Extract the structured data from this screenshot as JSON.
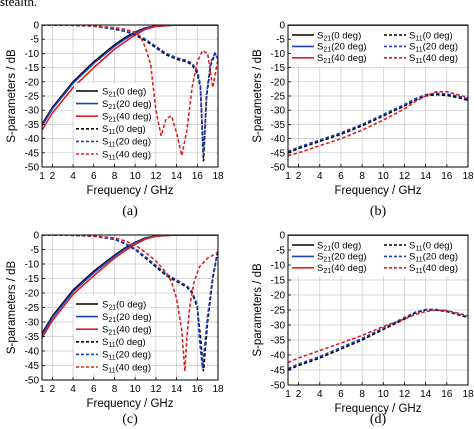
{
  "page_top_text": "stealth.",
  "chart_data": [
    {
      "panel": "(a)",
      "type": "line",
      "xlabel": "Frequency / GHz",
      "ylabel": "S-parameters / dB",
      "xlim": [
        1,
        18
      ],
      "ylim": [
        -50,
        0
      ],
      "xticks": [
        1,
        2,
        4,
        6,
        8,
        10,
        12,
        14,
        16,
        18
      ],
      "yticks": [
        0,
        -5,
        -10,
        -15,
        -20,
        -25,
        -30,
        -35,
        -40,
        -45,
        -50
      ],
      "grid": true,
      "legend_position": "lower-left",
      "series": [
        {
          "name": "S21(0 deg)",
          "sub": "21",
          "ang": "0",
          "color": "#000000",
          "dash": "solid",
          "x": [
            1,
            2,
            4,
            6,
            8,
            9,
            10,
            11,
            12,
            14,
            16,
            18
          ],
          "y": [
            -35,
            -29,
            -20,
            -13,
            -7,
            -4.5,
            -2.5,
            -1,
            -0.3,
            0,
            0,
            0
          ]
        },
        {
          "name": "S21(20 deg)",
          "sub": "21",
          "ang": "20",
          "color": "#1f3fbf",
          "dash": "solid",
          "x": [
            1,
            2,
            4,
            6,
            8,
            9,
            10,
            11,
            12,
            14,
            16,
            18
          ],
          "y": [
            -35.5,
            -29.5,
            -20.5,
            -13.5,
            -7.5,
            -5,
            -2.8,
            -1.1,
            -0.3,
            0,
            0,
            0
          ]
        },
        {
          "name": "S21(40 deg)",
          "sub": "21",
          "ang": "40",
          "color": "#e02020",
          "dash": "solid",
          "x": [
            1,
            2,
            4,
            6,
            8,
            9,
            10,
            11,
            12,
            14,
            16,
            18
          ],
          "y": [
            -37,
            -31,
            -22,
            -15,
            -8.5,
            -6,
            -3.5,
            -1.5,
            -0.5,
            0,
            0,
            0
          ]
        },
        {
          "name": "S11(0 deg)",
          "sub": "11",
          "ang": "0",
          "color": "#000000",
          "dash": "dash",
          "x": [
            1,
            2,
            4,
            6,
            8,
            9,
            10,
            11,
            12,
            13,
            14,
            15,
            15.5,
            16,
            16.3,
            16.6,
            16.9,
            17.3,
            17.7,
            18
          ],
          "y": [
            0,
            0,
            -0.1,
            -0.4,
            -1.5,
            -2.2,
            -3.5,
            -5.5,
            -8,
            -10.5,
            -12,
            -13,
            -14,
            -17,
            -22,
            -48,
            -25,
            -14,
            -10,
            -12
          ]
        },
        {
          "name": "S11(20 deg)",
          "sub": "11",
          "ang": "20",
          "color": "#1f3fbf",
          "dash": "dash",
          "x": [
            1,
            2,
            4,
            6,
            8,
            9,
            10,
            11,
            12,
            13,
            14,
            15,
            15.5,
            16,
            16.3,
            16.6,
            16.9,
            17.3,
            17.7,
            18
          ],
          "y": [
            0,
            0,
            -0.1,
            -0.4,
            -1.4,
            -2.1,
            -3.2,
            -5,
            -7.5,
            -10,
            -11.5,
            -12.5,
            -13.5,
            -16,
            -21,
            -46,
            -24,
            -13,
            -10,
            -12
          ]
        },
        {
          "name": "S11(40 deg)",
          "sub": "11",
          "ang": "40",
          "color": "#e02020",
          "dash": "dash",
          "x": [
            1,
            2,
            4,
            6,
            8,
            9,
            10,
            10.5,
            11,
            11.5,
            12,
            12.5,
            13,
            13.5,
            14,
            14.5,
            15,
            15.5,
            16,
            16.5,
            17,
            17.5,
            18
          ],
          "y": [
            0,
            0,
            -0.1,
            -0.3,
            -0.9,
            -1.5,
            -2.5,
            -4,
            -8,
            -14,
            -30,
            -39,
            -33,
            -32,
            -38,
            -46,
            -37,
            -22,
            -13,
            -9,
            -10,
            -22,
            -12
          ]
        }
      ]
    },
    {
      "panel": "(b)",
      "type": "line",
      "xlabel": "Frequency / GHz",
      "ylabel": "S-parameters / dB",
      "xlim": [
        1,
        18
      ],
      "ylim": [
        -50,
        0
      ],
      "xticks": [
        1,
        2,
        4,
        6,
        8,
        10,
        12,
        14,
        16,
        18
      ],
      "yticks": [
        0,
        -5,
        -10,
        -15,
        -20,
        -25,
        -30,
        -35,
        -40,
        -45,
        -50
      ],
      "grid": true,
      "legend_position": "top",
      "series": [
        {
          "name": "S21(0 deg)",
          "sub": "21",
          "ang": "0",
          "color": "#000000",
          "dash": "solid",
          "x": [
            1,
            18
          ],
          "y": [
            0,
            0
          ]
        },
        {
          "name": "S21(20 deg)",
          "sub": "21",
          "ang": "20",
          "color": "#1f3fbf",
          "dash": "solid",
          "x": [
            1,
            18
          ],
          "y": [
            0,
            0
          ]
        },
        {
          "name": "S21(40 deg)",
          "sub": "21",
          "ang": "40",
          "color": "#e02020",
          "dash": "solid",
          "x": [
            1,
            18
          ],
          "y": [
            0,
            0
          ]
        },
        {
          "name": "S11(0 deg)",
          "sub": "11",
          "ang": "0",
          "color": "#000000",
          "dash": "dash",
          "x": [
            1,
            2,
            4,
            6,
            8,
            10,
            12,
            13,
            14,
            15,
            16,
            17,
            18
          ],
          "y": [
            -45,
            -43.5,
            -41,
            -38.5,
            -35.5,
            -32,
            -28.5,
            -26.5,
            -25,
            -24.5,
            -24.8,
            -25.5,
            -26.5
          ]
        },
        {
          "name": "S11(20 deg)",
          "sub": "11",
          "ang": "20",
          "color": "#1f3fbf",
          "dash": "dash",
          "x": [
            1,
            2,
            4,
            6,
            8,
            10,
            12,
            13,
            14,
            15,
            16,
            17,
            18
          ],
          "y": [
            -44.5,
            -43,
            -40.5,
            -38,
            -35,
            -31.5,
            -28,
            -26,
            -24.5,
            -24,
            -24.3,
            -25,
            -26
          ]
        },
        {
          "name": "S11(40 deg)",
          "sub": "11",
          "ang": "40",
          "color": "#e02020",
          "dash": "dash",
          "x": [
            1,
            2,
            4,
            6,
            8,
            10,
            12,
            13,
            14,
            15,
            16,
            17,
            18
          ],
          "y": [
            -46,
            -45,
            -42.5,
            -40,
            -37,
            -33.5,
            -29.5,
            -27,
            -25,
            -23.5,
            -23.5,
            -24.5,
            -25.5
          ]
        }
      ]
    },
    {
      "panel": "(c)",
      "type": "line",
      "xlabel": "Frequency / GHz",
      "ylabel": "S-parameters / dB",
      "xlim": [
        1,
        18
      ],
      "ylim": [
        -50,
        0
      ],
      "xticks": [
        1,
        2,
        4,
        6,
        8,
        10,
        12,
        14,
        16,
        18
      ],
      "yticks": [
        0,
        -5,
        -10,
        -15,
        -20,
        -25,
        -30,
        -35,
        -40,
        -45,
        -50
      ],
      "grid": true,
      "legend_position": "lower-left",
      "series": [
        {
          "name": "S21(0 deg)",
          "sub": "21",
          "ang": "0",
          "color": "#000000",
          "dash": "solid",
          "x": [
            1,
            2,
            4,
            6,
            8,
            9,
            10,
            11,
            12,
            14,
            16,
            18
          ],
          "y": [
            -34,
            -28,
            -19,
            -12.5,
            -7,
            -4.5,
            -2.5,
            -1,
            -0.3,
            0,
            0,
            0
          ]
        },
        {
          "name": "S21(20 deg)",
          "sub": "21",
          "ang": "20",
          "color": "#1f3fbf",
          "dash": "solid",
          "x": [
            1,
            2,
            4,
            6,
            8,
            9,
            10,
            11,
            12,
            14,
            16,
            18
          ],
          "y": [
            -34.5,
            -28.5,
            -19.5,
            -13,
            -7.3,
            -4.8,
            -2.7,
            -1.1,
            -0.3,
            0,
            0,
            0
          ]
        },
        {
          "name": "S21(40 deg)",
          "sub": "21",
          "ang": "40",
          "color": "#e02020",
          "dash": "solid",
          "x": [
            1,
            2,
            4,
            6,
            8,
            9,
            10,
            11,
            12,
            14,
            16,
            18
          ],
          "y": [
            -35.5,
            -29.5,
            -20.5,
            -14,
            -8,
            -5.5,
            -3.2,
            -1.4,
            -0.4,
            0,
            0,
            0
          ]
        },
        {
          "name": "S11(0 deg)",
          "sub": "11",
          "ang": "0",
          "color": "#000000",
          "dash": "dash",
          "x": [
            1,
            2,
            4,
            6,
            8,
            9,
            10,
            11,
            12,
            13,
            14,
            15,
            15.5,
            16,
            16.3,
            16.6,
            17,
            17.5,
            18
          ],
          "y": [
            0,
            0,
            -0.1,
            -0.4,
            -1.5,
            -3,
            -5,
            -8,
            -11,
            -14,
            -16,
            -18,
            -20,
            -25,
            -35,
            -47,
            -30,
            -15,
            -5
          ]
        },
        {
          "name": "S11(20 deg)",
          "sub": "11",
          "ang": "20",
          "color": "#1f3fbf",
          "dash": "dash",
          "x": [
            1,
            2,
            4,
            6,
            8,
            9,
            10,
            11,
            12,
            13,
            14,
            15,
            15.5,
            16,
            16.2,
            16.5,
            17,
            17.5,
            18
          ],
          "y": [
            0,
            0,
            -0.1,
            -0.4,
            -1.4,
            -2.8,
            -4.8,
            -7.5,
            -10.5,
            -13.5,
            -15.5,
            -17.5,
            -19.5,
            -24,
            -36,
            -46,
            -28,
            -14,
            -5
          ]
        },
        {
          "name": "S11(40 deg)",
          "sub": "11",
          "ang": "40",
          "color": "#e02020",
          "dash": "dash",
          "x": [
            1,
            2,
            4,
            6,
            8,
            9,
            10,
            11,
            12,
            13,
            13.5,
            14,
            14.5,
            14.8,
            15,
            15.3,
            15.7,
            16.2,
            17,
            18
          ],
          "y": [
            0,
            0,
            -0.1,
            -0.3,
            -1,
            -2,
            -3.5,
            -6,
            -9,
            -13,
            -16,
            -22,
            -33,
            -47,
            -35,
            -24,
            -16,
            -11,
            -8,
            -6
          ]
        }
      ]
    },
    {
      "panel": "(d)",
      "type": "line",
      "xlabel": "Frequency / GHz",
      "ylabel": "S-parameters / dB",
      "xlim": [
        1,
        18
      ],
      "ylim": [
        -50,
        0
      ],
      "xticks": [
        1,
        2,
        4,
        6,
        8,
        10,
        12,
        14,
        16,
        18
      ],
      "yticks": [
        0,
        -5,
        -10,
        -15,
        -20,
        -25,
        -30,
        -35,
        -40,
        -45,
        -50
      ],
      "grid": true,
      "legend_position": "top",
      "series": [
        {
          "name": "S21(0 deg)",
          "sub": "21",
          "ang": "0",
          "color": "#000000",
          "dash": "solid",
          "x": [
            1,
            18
          ],
          "y": [
            0,
            0
          ]
        },
        {
          "name": "S21(20 deg)",
          "sub": "21",
          "ang": "20",
          "color": "#1f3fbf",
          "dash": "solid",
          "x": [
            1,
            18
          ],
          "y": [
            0,
            0
          ]
        },
        {
          "name": "S21(40 deg)",
          "sub": "21",
          "ang": "40",
          "color": "#e02020",
          "dash": "solid",
          "x": [
            1,
            18
          ],
          "y": [
            0,
            0
          ]
        },
        {
          "name": "S11(0 deg)",
          "sub": "11",
          "ang": "0",
          "color": "#000000",
          "dash": "dash",
          "x": [
            1,
            2,
            4,
            6,
            8,
            10,
            12,
            13,
            14,
            15,
            16,
            17,
            18
          ],
          "y": [
            -45,
            -43.5,
            -41,
            -38,
            -35,
            -31.5,
            -28,
            -26,
            -25,
            -25,
            -25.5,
            -26.5,
            -27.5
          ]
        },
        {
          "name": "S11(20 deg)",
          "sub": "11",
          "ang": "20",
          "color": "#1f3fbf",
          "dash": "dash",
          "x": [
            1,
            2,
            4,
            6,
            8,
            10,
            12,
            13,
            14,
            15,
            16,
            17,
            18
          ],
          "y": [
            -44.5,
            -43,
            -40.5,
            -37.5,
            -34.5,
            -31,
            -27.5,
            -25.8,
            -24.8,
            -24.8,
            -25.3,
            -26.3,
            -27.3
          ]
        },
        {
          "name": "S11(40 deg)",
          "sub": "11",
          "ang": "40",
          "color": "#e02020",
          "dash": "dash",
          "x": [
            1,
            2,
            4,
            6,
            8,
            10,
            12,
            13,
            14,
            15,
            16,
            17,
            18
          ],
          "y": [
            -42.5,
            -41,
            -38.5,
            -36,
            -33.5,
            -30.5,
            -28,
            -26.5,
            -25.5,
            -25,
            -25.2,
            -26,
            -27
          ]
        }
      ]
    }
  ]
}
